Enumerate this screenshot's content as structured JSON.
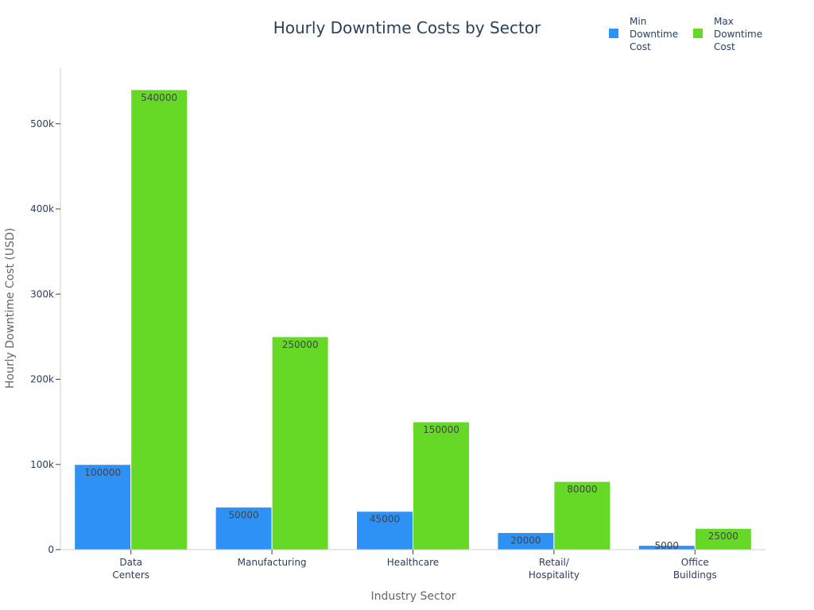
{
  "chart_data": {
    "type": "bar",
    "title": "Hourly Downtime Costs by Sector",
    "xlabel": "Industry Sector",
    "ylabel": "Hourly Downtime Cost (USD)",
    "categories": [
      [
        "Data",
        "Centers"
      ],
      [
        "Manufacturing"
      ],
      [
        "Healthcare"
      ],
      [
        "Retail/",
        "Hospitality"
      ],
      [
        "Office",
        "Buildings"
      ]
    ],
    "series": [
      {
        "name": [
          "Min",
          "Downtime",
          "Cost"
        ],
        "color": "#2e91f6",
        "values": [
          100000,
          50000,
          45000,
          20000,
          5000
        ],
        "labels": [
          "100000",
          "50000",
          "45000",
          "20000",
          "5000"
        ]
      },
      {
        "name": [
          "Max",
          "Downtime",
          "Cost"
        ],
        "color": "#66d927",
        "values": [
          540000,
          250000,
          150000,
          80000,
          25000
        ],
        "labels": [
          "540000",
          "250000",
          "150000",
          "80000",
          "25000"
        ]
      }
    ],
    "ylim": [
      0,
      566000
    ],
    "yticks": [
      0,
      100000,
      200000,
      300000,
      400000,
      500000
    ],
    "ytick_labels": [
      "0",
      "100k",
      "200k",
      "300k",
      "400k",
      "500k"
    ],
    "grid": false,
    "legend_position": "top-right"
  }
}
